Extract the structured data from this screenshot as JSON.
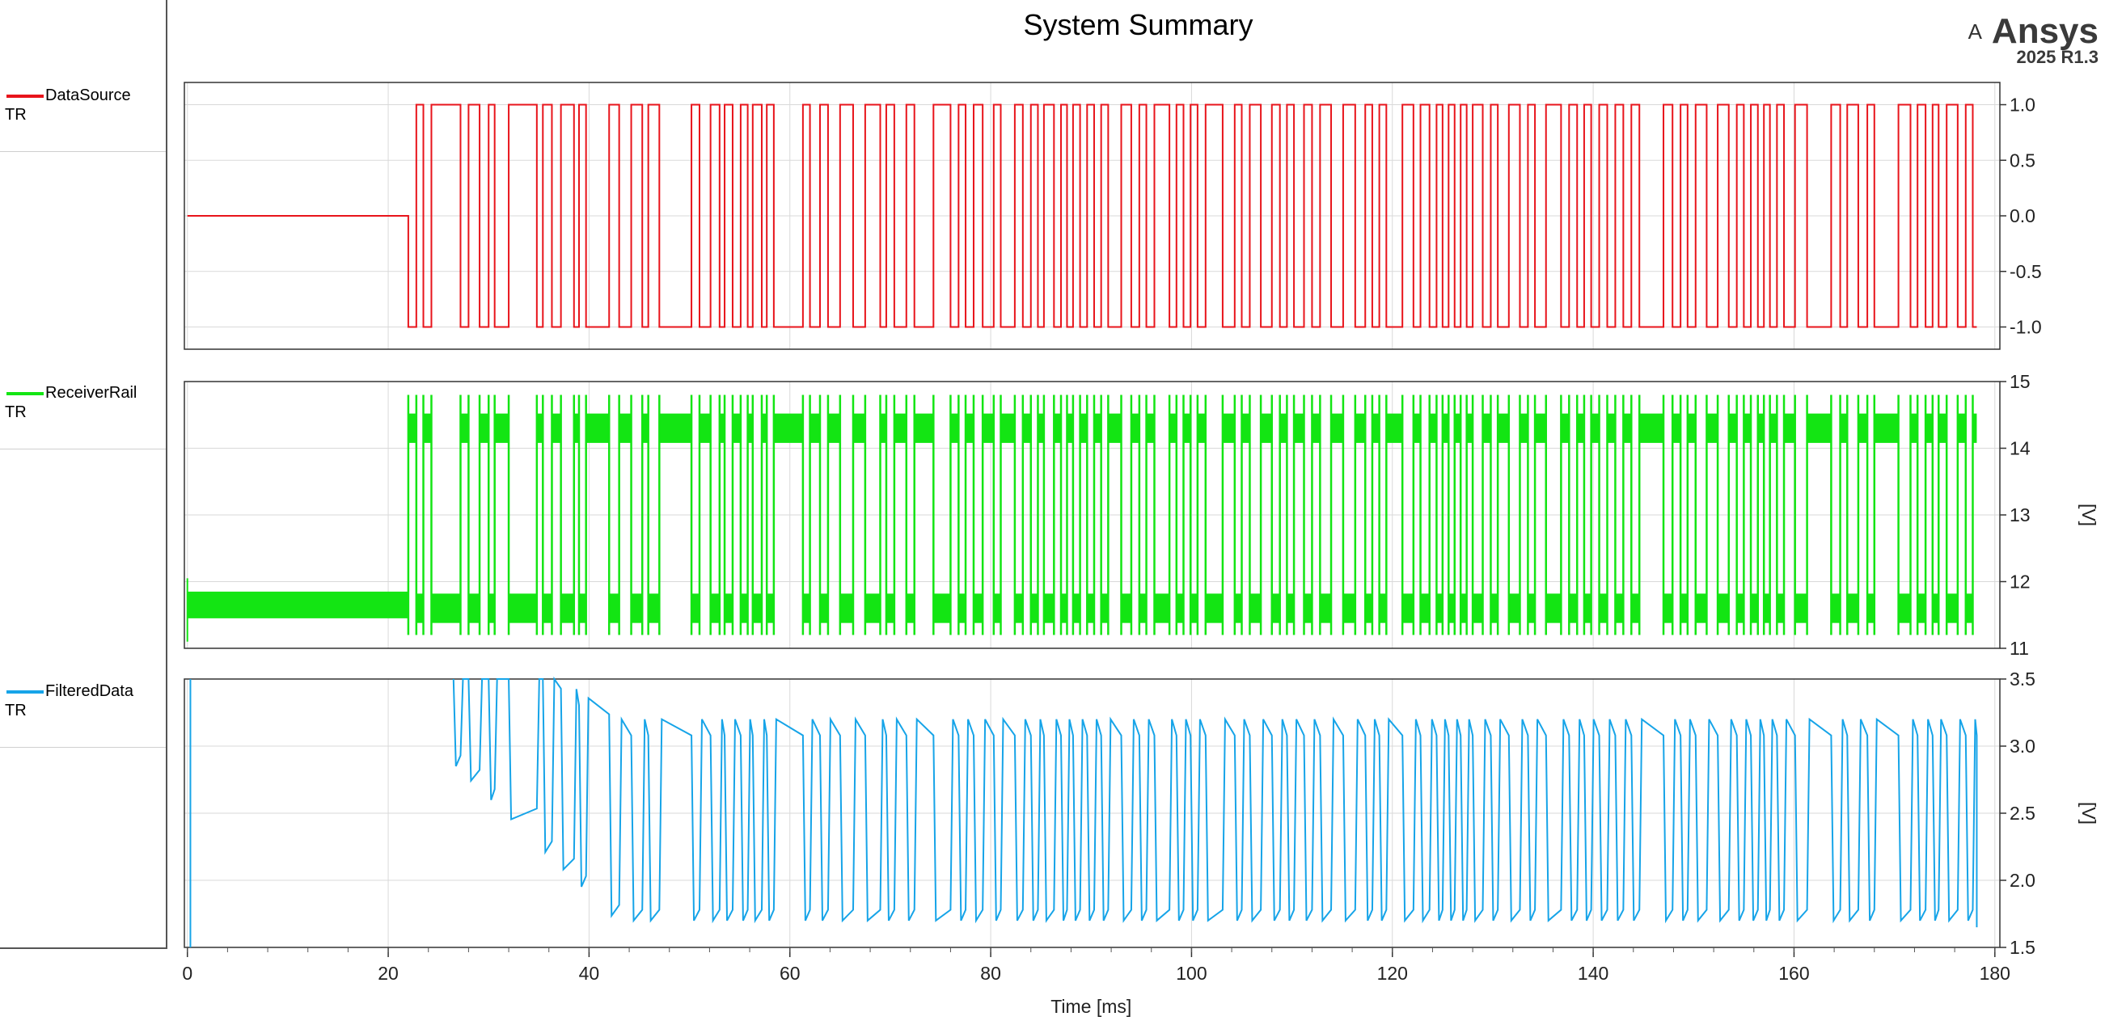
{
  "title": "System Summary",
  "logo": {
    "mark": "A",
    "brand": "Ansys",
    "version": "2025 R1.3"
  },
  "chart_data": [
    {
      "type": "line",
      "legend": {
        "name": "DataSource",
        "tag": "TR",
        "color": "#e8141b"
      },
      "ylabel": "",
      "ylim": [
        -1.2,
        1.2
      ],
      "yticks": [
        "1.0",
        "0.5",
        "0.0",
        "-0.5",
        "-1.0"
      ],
      "ytick_values": [
        1.0,
        0.5,
        0.0,
        -0.5,
        -1.0
      ],
      "initial_value": 0,
      "start_time": 22.0,
      "end_time": 178.2,
      "transitions": [
        22.0,
        22.8,
        23.5,
        24.3,
        27.2,
        28.0,
        29.1,
        30.0,
        30.6,
        32.0,
        34.8,
        35.4,
        36.3,
        37.2,
        38.5,
        39.0,
        39.7,
        42.0,
        43.0,
        44.2,
        45.3,
        45.9,
        47.0,
        50.2,
        51.0,
        52.1,
        53.0,
        53.5,
        54.3,
        55.1,
        55.8,
        56.3,
        57.2,
        57.7,
        58.4,
        61.3,
        62.0,
        63.0,
        63.8,
        65.0,
        66.3,
        67.5,
        69.0,
        69.6,
        70.4,
        71.6,
        72.4,
        74.3,
        76.0,
        76.8,
        77.5,
        78.3,
        79.2,
        80.3,
        81.0,
        82.4,
        83.2,
        84.0,
        84.7,
        85.3,
        86.3,
        87.0,
        87.6,
        88.2,
        88.9,
        89.6,
        90.3,
        91.0,
        91.7,
        93.0,
        94.0,
        94.8,
        95.5,
        96.3,
        97.8,
        98.5,
        99.2,
        99.9,
        100.6,
        101.4,
        103.1,
        104.3,
        105.0,
        105.8,
        106.9,
        108.0,
        108.8,
        109.5,
        110.2,
        111.2,
        112.0,
        112.8,
        113.9,
        115.1,
        116.3,
        117.3,
        118.0,
        118.7,
        119.4,
        121.0,
        122.1,
        122.8,
        123.7,
        124.4,
        125.0,
        125.6,
        126.2,
        126.8,
        127.4,
        128.0,
        129.0,
        129.8,
        130.5,
        131.6,
        132.7,
        133.5,
        134.2,
        135.3,
        136.8,
        137.6,
        138.4,
        139.1,
        139.8,
        140.6,
        141.4,
        142.2,
        143.0,
        143.8,
        144.6,
        147.0,
        147.9,
        148.7,
        149.4,
        150.2,
        151.3,
        152.4,
        153.5,
        154.3,
        155.0,
        155.7,
        156.4,
        157.0,
        157.6,
        158.3,
        159.0,
        160.1,
        161.3,
        163.7,
        164.6,
        165.3,
        166.4,
        167.3,
        168.0,
        170.4,
        171.6,
        172.3,
        173.1,
        173.8,
        174.4,
        175.2,
        176.3,
        177.1,
        177.8
      ],
      "x_axis": {
        "label": "Time [ms]",
        "ticks": [
          "0",
          "20",
          "40",
          "60",
          "80",
          "100",
          "120",
          "140",
          "160",
          "180"
        ],
        "tick_values": [
          0,
          20,
          40,
          60,
          80,
          100,
          120,
          140,
          160,
          180
        ],
        "xlim": [
          -0.3,
          180.5
        ]
      },
      "grid": true
    },
    {
      "type": "line",
      "legend": {
        "name": "ReceiverRail",
        "tag": "TR",
        "color": "#13e513"
      },
      "ylabel": "[V]",
      "ylim": [
        11,
        15
      ],
      "yticks": [
        "15",
        "14",
        "13",
        "12",
        "11"
      ],
      "ytick_values": [
        15,
        14,
        13,
        12,
        11
      ],
      "initial_level": 11.65,
      "high_level": 14.3,
      "low_level": 11.6,
      "overshoot_high": 14.8,
      "overshoot_low": 11.2,
      "start_time": 22.0,
      "end_time": 178.2,
      "grid": true
    },
    {
      "type": "line",
      "legend": {
        "name": "FilteredData",
        "tag": "TR",
        "color": "#16a4e8"
      },
      "ylabel": "[V]",
      "ylim": [
        1.5,
        3.5
      ],
      "yticks": [
        "3.5",
        "3.0",
        "2.5",
        "2.0",
        "1.5"
      ],
      "ytick_values": [
        3.5,
        3.0,
        2.5,
        2.0,
        1.5
      ],
      "spike_time": 0.3,
      "onset_time": 26.5,
      "high_level": 3.2,
      "low_level": 1.7,
      "end_time": 178.2,
      "grid": true
    }
  ]
}
